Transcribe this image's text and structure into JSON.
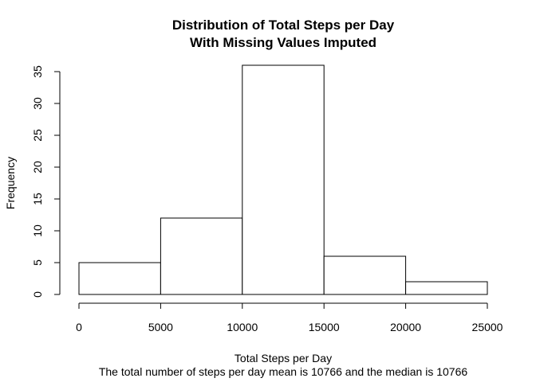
{
  "chart_data": {
    "type": "bar",
    "title_lines": [
      "Distribution of Total Steps per Day",
      "With Missing Values Imputed"
    ],
    "xlabel": "Total Steps per Day",
    "ylabel": "Frequency",
    "subtitle": "The total number of steps per day mean is 10766 and the median is 10766",
    "bins": [
      {
        "start": 0,
        "end": 5000,
        "count": 5
      },
      {
        "start": 5000,
        "end": 10000,
        "count": 12
      },
      {
        "start": 10000,
        "end": 15000,
        "count": 36
      },
      {
        "start": 15000,
        "end": 20000,
        "count": 6
      },
      {
        "start": 20000,
        "end": 25000,
        "count": 2
      }
    ],
    "xlim": [
      0,
      25000
    ],
    "ylim": [
      0,
      35
    ],
    "xticks": [
      0,
      5000,
      10000,
      15000,
      20000,
      25000
    ],
    "xtick_labels": [
      "0",
      "5000",
      "10000",
      "15000",
      "20000",
      "25000"
    ],
    "yticks": [
      0,
      5,
      10,
      15,
      20,
      25,
      30,
      35
    ],
    "ytick_labels": [
      "0",
      "5",
      "10",
      "15",
      "20",
      "25",
      "30",
      "35"
    ],
    "grid": false,
    "legend": "none",
    "colors": {
      "bar_fill": "#ffffff",
      "bar_stroke": "#000000",
      "text": "#000000"
    }
  }
}
